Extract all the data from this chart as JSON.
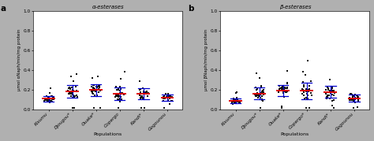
{
  "populations_a": [
    "Kisumu",
    "Djougou*",
    "Ouake*",
    "Copergo",
    "Kandi*",
    "Gogounou"
  ],
  "populations_b": [
    "Kisumu",
    "Djougou*",
    "Ouake*",
    "Copergo*",
    "Kandi*",
    "Gogounou"
  ],
  "panel_a_title": "α-esterases",
  "panel_b_title": "β-esterases",
  "ylabel_a": "μmol αNaph/min/mg protein",
  "ylabel_b": "μmol βNaph/min/mg protein",
  "xlabel": "Populations",
  "ylim": [
    0,
    1.0
  ],
  "yticks": [
    0.0,
    0.2,
    0.4,
    0.6,
    0.8,
    1.0
  ],
  "outer_bg": "#b0b0b0",
  "panel_bg": "#ffffff",
  "dot_color": "#111111",
  "mean_color": "#dd0000",
  "sd_color": "#0000cc",
  "a_means": [
    0.105,
    0.18,
    0.195,
    0.155,
    0.155,
    0.115
  ],
  "a_sds": [
    0.03,
    0.065,
    0.06,
    0.065,
    0.055,
    0.03
  ],
  "b_means": [
    0.085,
    0.16,
    0.19,
    0.185,
    0.175,
    0.11
  ],
  "b_sds": [
    0.025,
    0.06,
    0.055,
    0.085,
    0.06,
    0.035
  ]
}
